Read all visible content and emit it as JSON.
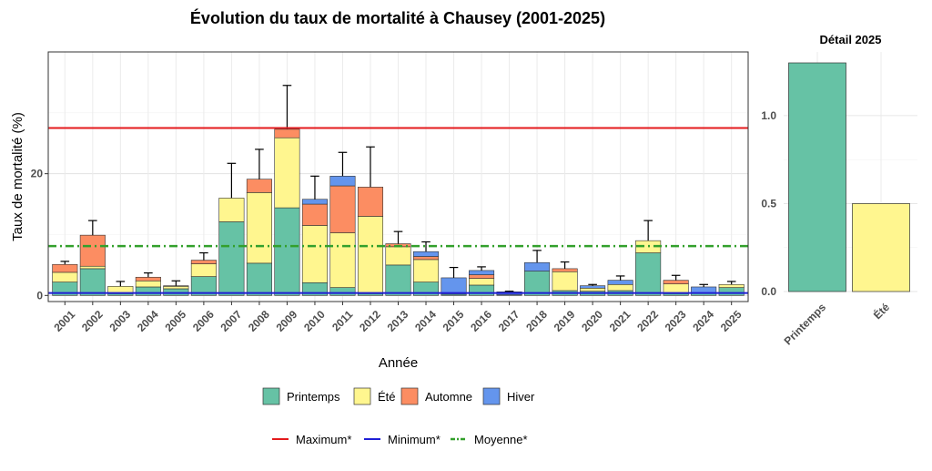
{
  "title": "Évolution du taux de mortalité à Chausey (2001-2025)",
  "colors": {
    "Printemps": "#66c2a5",
    "Été": "#fff68f",
    "Automne": "#fc8d62",
    "Hiver": "#6495ed",
    "maximum": "#e41a1c",
    "minimum": "#1f1fd6",
    "moyenne": "#33a02c"
  },
  "legend": {
    "seasons": [
      "Printemps",
      "Été",
      "Automne",
      "Hiver"
    ],
    "lines": [
      {
        "key": "maximum",
        "label": "Maximum*"
      },
      {
        "key": "minimum",
        "label": "Minimum*"
      },
      {
        "key": "moyenne",
        "label": "Moyenne*"
      }
    ]
  },
  "chart_data": [
    {
      "type": "bar",
      "stacked": true,
      "title": "",
      "xlabel": "Année",
      "ylabel": "Taux de mortalité (%)",
      "ylim": [
        -1,
        40
      ],
      "yticks": [
        0,
        20
      ],
      "grid": true,
      "legend_position": "bottom",
      "categories": [
        "2001",
        "2002",
        "2003",
        "2004",
        "2005",
        "2006",
        "2007",
        "2008",
        "2009",
        "2010",
        "2011",
        "2012",
        "2013",
        "2014",
        "2015",
        "2016",
        "2017",
        "2018",
        "2019",
        "2020",
        "2021",
        "2022",
        "2023",
        "2024",
        "2025"
      ],
      "series": [
        {
          "name": "Printemps",
          "values": [
            2.2,
            4.4,
            0.3,
            1.4,
            1.1,
            3.1,
            12.1,
            5.3,
            14.4,
            2.1,
            1.3,
            0.3,
            5.0,
            2.2,
            0.2,
            1.7,
            0.1,
            4.0,
            0.8,
            0.7,
            0.8,
            7.0,
            0.3,
            0.4,
            1.3
          ]
        },
        {
          "name": "Été",
          "values": [
            1.6,
            0.4,
            1.2,
            1.0,
            0.4,
            2.1,
            3.9,
            11.6,
            11.5,
            9.4,
            9.0,
            12.7,
            3.0,
            3.7,
            0.0,
            1.1,
            0.0,
            0.0,
            3.1,
            0.5,
            1.0,
            2.0,
            1.6,
            0.0,
            0.5
          ]
        },
        {
          "name": "Automne",
          "values": [
            1.3,
            5.1,
            0.0,
            0.6,
            0.1,
            0.6,
            0.0,
            2.2,
            1.4,
            3.5,
            7.7,
            4.8,
            0.5,
            0.5,
            0.0,
            0.6,
            0.0,
            0.0,
            0.5,
            0.0,
            0.0,
            0.0,
            0.6,
            0.0,
            0.0
          ]
        },
        {
          "name": "Hiver",
          "values": [
            0.0,
            0.0,
            0.0,
            0.0,
            0.0,
            0.0,
            0.0,
            0.0,
            0.0,
            0.8,
            1.6,
            0.0,
            0.0,
            0.8,
            2.7,
            0.7,
            0.5,
            1.4,
            0.0,
            0.4,
            0.7,
            0.0,
            0.0,
            1.0,
            0.0
          ]
        }
      ],
      "error_upper": [
        5.6,
        12.3,
        2.3,
        3.7,
        2.4,
        7.0,
        21.7,
        24.0,
        34.5,
        19.6,
        23.5,
        24.4,
        10.5,
        8.8,
        4.6,
        4.7,
        0.7,
        7.4,
        5.5,
        1.8,
        3.2,
        12.3,
        3.3,
        1.8,
        2.3
      ],
      "reference_lines": [
        {
          "key": "maximum",
          "label": "Maximum*",
          "y": 27.5,
          "style": "solid"
        },
        {
          "key": "minimum",
          "label": "Minimum*",
          "y": 0.4,
          "style": "solid"
        },
        {
          "key": "moyenne",
          "label": "Moyenne*",
          "y": 8.1,
          "style": "dashdot"
        }
      ]
    },
    {
      "type": "bar",
      "title": "Détail 2025",
      "ylim": [
        0,
        1.3
      ],
      "yticks": [
        0.0,
        0.5,
        1.0
      ],
      "ytick_labels": [
        "0.0",
        "0.5",
        "1.0"
      ],
      "grid": true,
      "categories": [
        "Printemps",
        "Été"
      ],
      "values": [
        1.3,
        0.5
      ]
    }
  ]
}
